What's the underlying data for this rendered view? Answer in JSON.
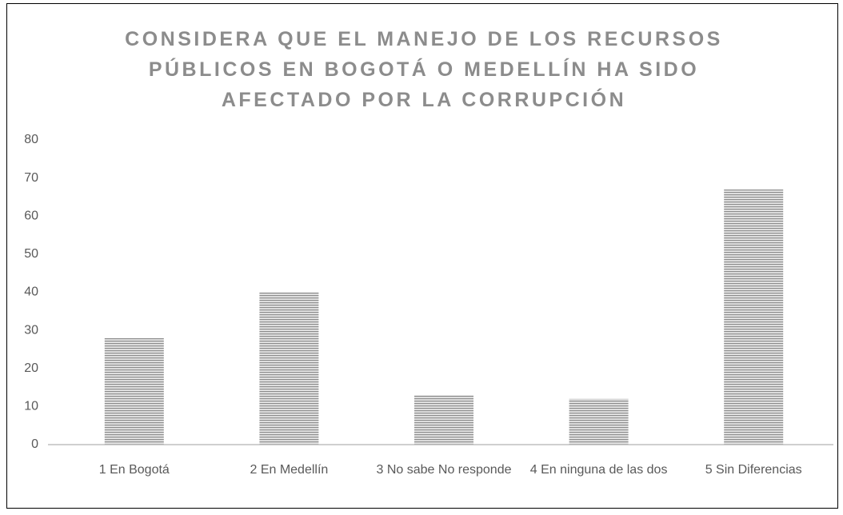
{
  "chart_data": {
    "type": "bar",
    "title": "CONSIDERA QUE EL MANEJO DE LOS RECURSOS PÚBLICOS EN BOGOTÁ O MEDELLÍN HA SIDO AFECTADO POR LA CORRUPCIÓN",
    "categories": [
      "1 En Bogotá",
      "2 En Medellín",
      "3 No sabe No responde",
      "4 En ninguna de las dos",
      "5 Sin Diferencias"
    ],
    "values": [
      28,
      40,
      13,
      12,
      67
    ],
    "color": "#8c8c8c",
    "ylim": [
      0,
      80
    ],
    "yticks": [
      0,
      10,
      20,
      30,
      40,
      50,
      60,
      70,
      80
    ],
    "grid": false
  }
}
